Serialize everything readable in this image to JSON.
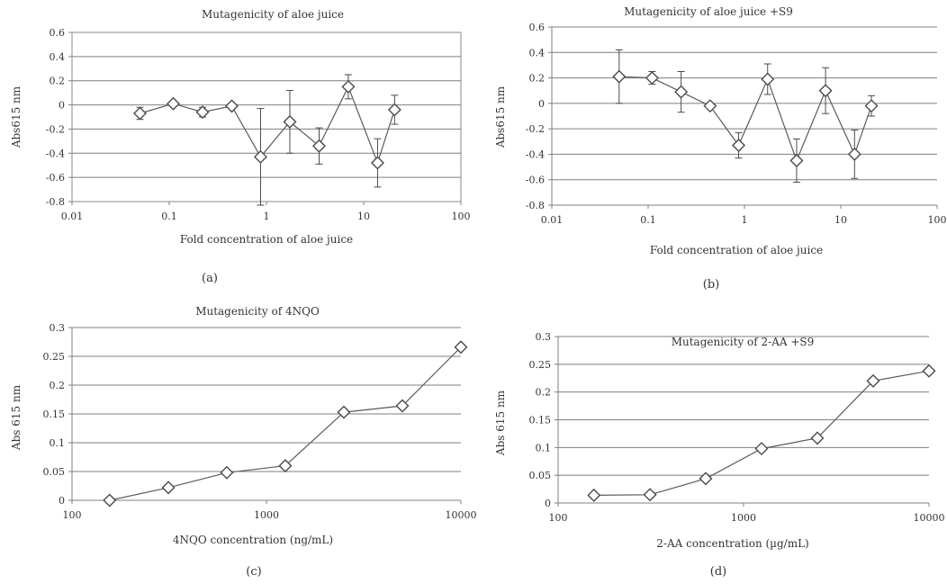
{
  "chart_data": [
    {
      "type": "line",
      "panel_label": "(a)",
      "title": "Mutagenicity of aloe juice",
      "xlabel": "Fold concentration of aloe juice",
      "ylabel": "Abs615 nm",
      "xscale": "log",
      "xlim": [
        0.01,
        100
      ],
      "ylim": [
        -0.8,
        0.6
      ],
      "xticks": [
        0.01,
        0.1,
        1,
        10,
        100
      ],
      "xtick_labels": [
        "0.01",
        "0.1",
        "1",
        "10",
        "100"
      ],
      "yticks": [
        -0.8,
        -0.6,
        -0.4,
        -0.2,
        0,
        0.2,
        0.4,
        0.6
      ],
      "ytick_labels": [
        "-0.8",
        "-0.6",
        "-0.4",
        "-0.2",
        "0",
        "0.2",
        "0.4",
        "0.6"
      ],
      "grid": true,
      "series": [
        {
          "x": [
            0.05,
            0.11,
            0.22,
            0.44,
            0.87,
            1.74,
            3.48,
            6.95,
            13.9,
            20.8
          ],
          "y": [
            -0.07,
            0.01,
            -0.06,
            -0.01,
            -0.43,
            -0.14,
            -0.34,
            0.15,
            -0.48,
            -0.04
          ],
          "yerr": [
            0.05,
            0.02,
            0.04,
            0.02,
            0.4,
            0.26,
            0.15,
            0.1,
            0.2,
            0.12
          ]
        }
      ]
    },
    {
      "type": "line",
      "panel_label": "(b)",
      "title": "Mutagenicity of aloe juice +S9",
      "xlabel": "Fold concentration of aloe juice",
      "ylabel": "Abs615 nm",
      "xscale": "log",
      "xlim": [
        0.01,
        100
      ],
      "ylim": [
        -0.8,
        0.6
      ],
      "xticks": [
        0.01,
        0.1,
        1,
        10,
        100
      ],
      "xtick_labels": [
        "0.01",
        "0.1",
        "1",
        "10",
        "100"
      ],
      "yticks": [
        -0.8,
        -0.6,
        -0.4,
        -0.2,
        0,
        0.2,
        0.4,
        0.6
      ],
      "ytick_labels": [
        "-0.8",
        "-0.6",
        "-0.4",
        "-0.2",
        "0",
        "0.2",
        "0.4",
        "0.6"
      ],
      "grid": true,
      "series": [
        {
          "x": [
            0.05,
            0.11,
            0.22,
            0.44,
            0.87,
            1.74,
            3.48,
            6.95,
            13.9,
            20.8
          ],
          "y": [
            0.21,
            0.2,
            0.09,
            -0.02,
            -0.33,
            0.19,
            -0.45,
            0.1,
            -0.4,
            -0.02
          ],
          "yerr": [
            0.21,
            0.05,
            0.16,
            0.02,
            0.1,
            0.12,
            0.17,
            0.18,
            0.19,
            0.08
          ]
        }
      ]
    },
    {
      "type": "line",
      "panel_label": "(c)",
      "title": "Mutagenicity of 4NQO",
      "xlabel": "4NQO concentration (ng/mL)",
      "ylabel": "Abs 615 nm",
      "xscale": "log",
      "xlim": [
        100,
        10000
      ],
      "ylim": [
        0,
        0.3
      ],
      "xticks": [
        100,
        1000,
        10000
      ],
      "xtick_labels": [
        "100",
        "1000",
        "10000"
      ],
      "yticks": [
        0,
        0.05,
        0.1,
        0.15,
        0.2,
        0.25,
        0.3
      ],
      "ytick_labels": [
        "0",
        "0.05",
        "0.1",
        "0.15",
        "0.2",
        "0.25",
        "0.3"
      ],
      "grid": true,
      "series": [
        {
          "x": [
            156,
            313,
            625,
            1250,
            2500,
            5000,
            10000
          ],
          "y": [
            0.0,
            0.022,
            0.048,
            0.06,
            0.153,
            0.164,
            0.266
          ]
        }
      ]
    },
    {
      "type": "line",
      "panel_label": "(d)",
      "title": "Mutagenicity of 2-AA +S9",
      "xlabel": "2-AA concentration (µg/mL)",
      "ylabel": "Abs 615 nm",
      "xscale": "log",
      "xlim": [
        100,
        10000
      ],
      "ylim": [
        0,
        0.3
      ],
      "xticks": [
        100,
        1000,
        10000
      ],
      "xtick_labels": [
        "100",
        "1000",
        "10000"
      ],
      "yticks": [
        0,
        0.05,
        0.1,
        0.15,
        0.2,
        0.25,
        0.3
      ],
      "ytick_labels": [
        "0",
        "0.05",
        "0.1",
        "0.15",
        "0.2",
        "0.25",
        "0.3"
      ],
      "grid": true,
      "series": [
        {
          "x": [
            156,
            313,
            625,
            1250,
            2500,
            5000,
            10000
          ],
          "y": [
            0.014,
            0.015,
            0.044,
            0.098,
            0.117,
            0.22,
            0.238
          ]
        }
      ]
    }
  ]
}
